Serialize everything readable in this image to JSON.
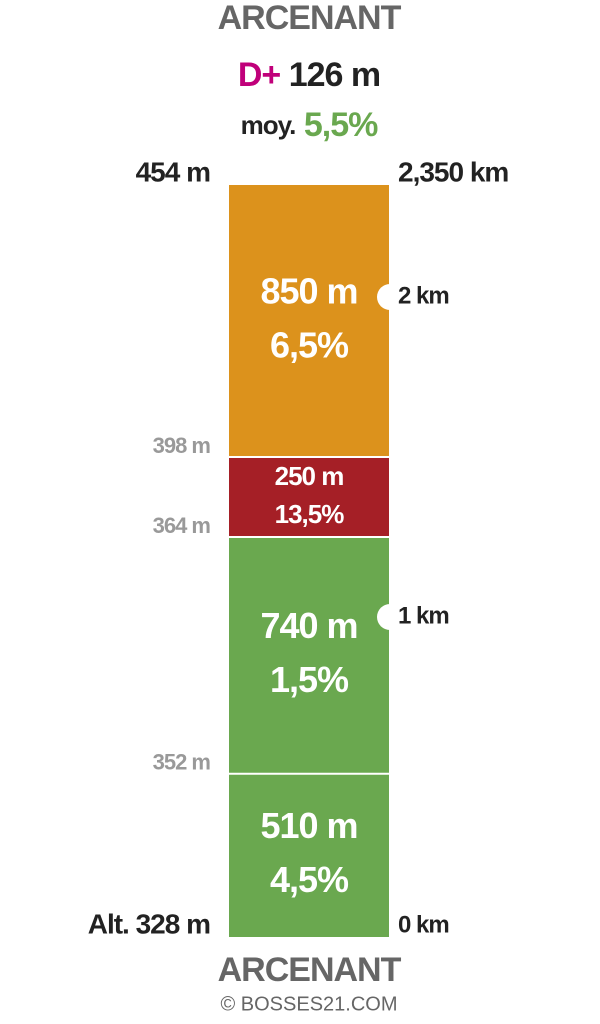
{
  "header": {
    "title": "ARCENANT",
    "gain_prefix": "D+",
    "gain": "126 m",
    "avg_prefix": "moy.",
    "avg": "5,5%"
  },
  "start_altitude": "Alt. 328 m",
  "total_distance": "2,350 km",
  "start_distance": "0 km",
  "segments": [
    {
      "length": 510,
      "length_label": "510 m",
      "grade": "4,5%",
      "color": "#6aa84f",
      "top_altitude": "352 m"
    },
    {
      "length": 740,
      "length_label": "740 m",
      "grade": "1,5%",
      "color": "#6aa84f",
      "top_altitude": "364 m"
    },
    {
      "length": 250,
      "length_label": "250 m",
      "grade": "13,5%",
      "color": "#a51f26",
      "top_altitude": "398 m"
    },
    {
      "length": 850,
      "length_label": "850 m",
      "grade": "6,5%",
      "color": "#dc921c",
      "top_altitude": "454 m"
    }
  ],
  "km_markers": [
    {
      "value": 1000,
      "label": "1 km"
    },
    {
      "value": 2000,
      "label": "2 km"
    }
  ],
  "footer": {
    "title": "ARCENANT",
    "credit": "© BOSSES21.COM"
  }
}
